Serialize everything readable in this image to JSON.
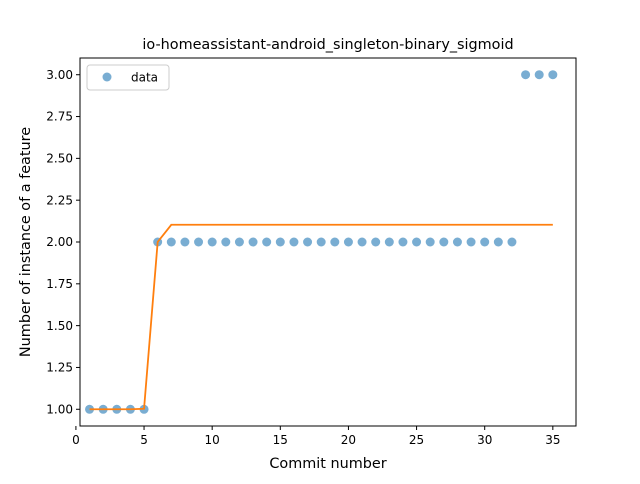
{
  "chart_data": {
    "type": "scatter",
    "title": "io-homeassistant-android_singleton-binary_sigmoid",
    "xlabel": "Commit number",
    "ylabel": "Number of instance of a feature",
    "xlim": [
      0.3,
      36.7
    ],
    "ylim": [
      0.9,
      3.1
    ],
    "x_ticks": [
      0,
      5,
      10,
      15,
      20,
      25,
      30,
      35
    ],
    "y_ticks": [
      1.0,
      1.25,
      1.5,
      1.75,
      2.0,
      2.25,
      2.5,
      2.75,
      3.0
    ],
    "x_tick_labels": [
      "0",
      "5",
      "10",
      "15",
      "20",
      "25",
      "30",
      "35"
    ],
    "y_tick_labels": [
      "1.00",
      "1.25",
      "1.50",
      "1.75",
      "2.00",
      "2.25",
      "2.50",
      "2.75",
      "3.00"
    ],
    "grid": false,
    "legend": {
      "placement": "top-left",
      "entries": [
        "data"
      ]
    },
    "series": [
      {
        "name": "data",
        "kind": "scatter",
        "color": "#1f77b4",
        "x": [
          1,
          2,
          3,
          4,
          5,
          6,
          7,
          8,
          9,
          10,
          11,
          12,
          13,
          14,
          15,
          16,
          17,
          18,
          19,
          20,
          21,
          22,
          23,
          24,
          25,
          26,
          27,
          28,
          29,
          30,
          31,
          32,
          33,
          34,
          35
        ],
        "y": [
          1,
          1,
          1,
          1,
          1,
          2,
          2,
          2,
          2,
          2,
          2,
          2,
          2,
          2,
          2,
          2,
          2,
          2,
          2,
          2,
          2,
          2,
          2,
          2,
          2,
          2,
          2,
          2,
          2,
          2,
          2,
          2,
          3,
          3,
          3
        ]
      },
      {
        "kind": "line",
        "color": "#ff7f0e",
        "x": [
          1,
          2,
          3,
          4,
          5,
          6,
          7,
          8,
          9,
          10,
          11,
          12,
          13,
          14,
          15,
          16,
          17,
          18,
          19,
          20,
          21,
          22,
          23,
          24,
          25,
          26,
          27,
          28,
          29,
          30,
          31,
          32,
          33,
          34,
          35
        ],
        "y": [
          1,
          1,
          1,
          1,
          1.003,
          2.0,
          2.103,
          2.103,
          2.103,
          2.103,
          2.103,
          2.103,
          2.103,
          2.103,
          2.103,
          2.103,
          2.103,
          2.103,
          2.103,
          2.103,
          2.103,
          2.103,
          2.103,
          2.103,
          2.103,
          2.103,
          2.103,
          2.103,
          2.103,
          2.103,
          2.103,
          2.103,
          2.103,
          2.103,
          2.103
        ]
      }
    ]
  }
}
